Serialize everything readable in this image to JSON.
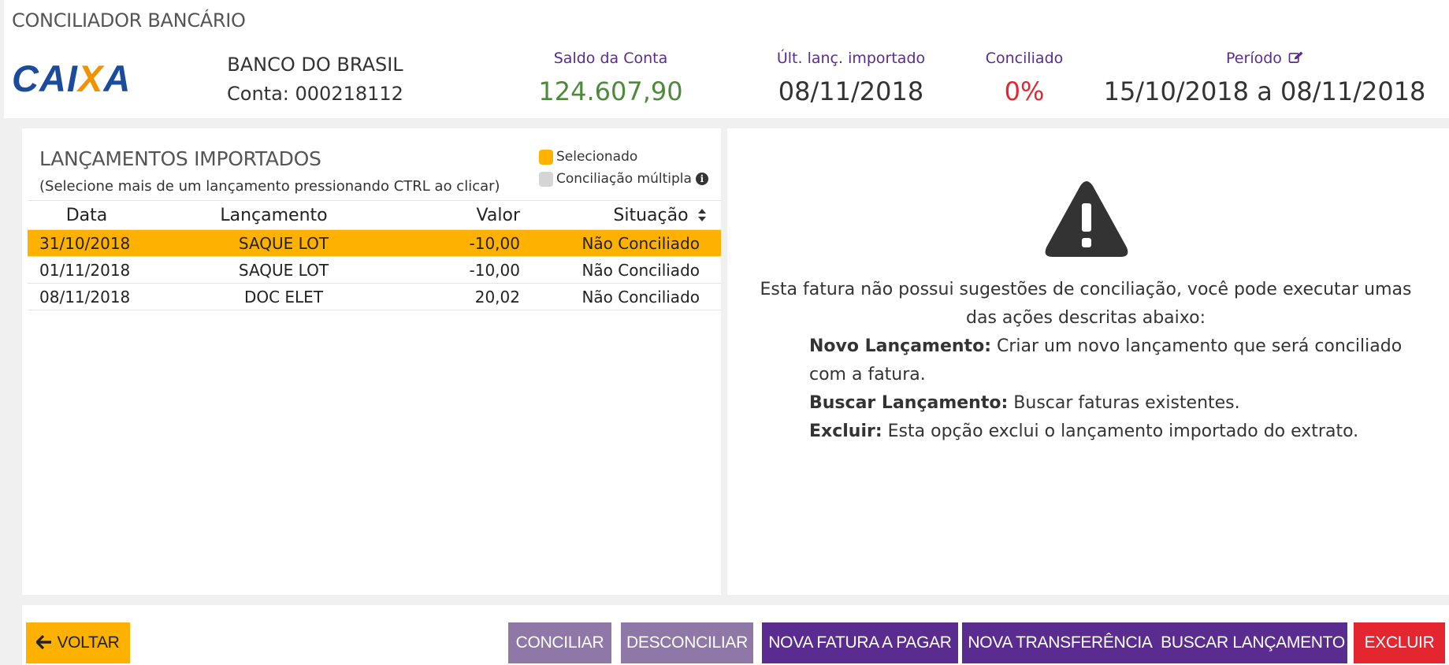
{
  "header": {
    "title": "CONCILIADOR BANCÁRIO",
    "logo": {
      "part1": "CAI",
      "part2": "X",
      "part3": "A"
    },
    "bank_name": "BANCO DO BRASIL",
    "account": "Conta: 000218112",
    "stats": {
      "saldo_label": "Saldo da Conta",
      "saldo_value": "124.607,90",
      "ultimo_label": "Últ. lanç. importado",
      "ultimo_value": "08/11/2018",
      "conciliado_label": "Conciliado",
      "conciliado_value": "0%",
      "periodo_label": "Período",
      "periodo_value": "15/10/2018 a 08/11/2018"
    }
  },
  "imported": {
    "title": "LANÇAMENTOS IMPORTADOS",
    "subtitle": "(Selecione mais de um lançamento pressionando CTRL ao clicar)",
    "legend_selected": "Selecionado",
    "legend_multiple": "Conciliação múltipla",
    "columns": [
      "Data",
      "Lançamento",
      "Valor",
      "Situação"
    ],
    "rows": [
      {
        "date": "31/10/2018",
        "desc": "SAQUE LOT",
        "value": "-10,00",
        "status": "Não Conciliado",
        "selected": true
      },
      {
        "date": "01/11/2018",
        "desc": "SAQUE LOT",
        "value": "-10,00",
        "status": "Não Conciliado",
        "selected": false
      },
      {
        "date": "08/11/2018",
        "desc": "DOC ELET",
        "value": "20,02",
        "status": "Não Conciliado",
        "selected": false
      }
    ]
  },
  "suggestions": {
    "message": "Esta fatura não possui sugestões de conciliação, você pode executar umas das ações descritas abaixo:",
    "options": [
      {
        "label": "Novo Lançamento:",
        "text": "Criar um novo lançamento que será conciliado com a fatura."
      },
      {
        "label": "Buscar Lançamento:",
        "text": "Buscar faturas existentes."
      },
      {
        "label": "Excluir:",
        "text": "Esta opção exclui o lançamento importado do extrato."
      }
    ]
  },
  "footer": {
    "voltar": "VOLTAR",
    "conciliar": "CONCILIAR",
    "desconciliar": "DESCONCILIAR",
    "nova_fatura": "NOVA FATURA A PAGAR",
    "nova_transferencia": "NOVA TRANSFERÊNCIA",
    "buscar": "BUSCAR LANÇAMENTO",
    "excluir": "EXCLUIR"
  },
  "colors": {
    "accent_orange": "#ffb100",
    "purple": "#5b2c8f",
    "purple_muted": "#8f77a8",
    "red": "#e3262f",
    "green": "#4b8b3b",
    "caixa_blue": "#1b4b9b"
  },
  "icons": [
    "edit-icon",
    "info-icon",
    "sort-icon",
    "warning-icon",
    "arrow-left-icon"
  ]
}
